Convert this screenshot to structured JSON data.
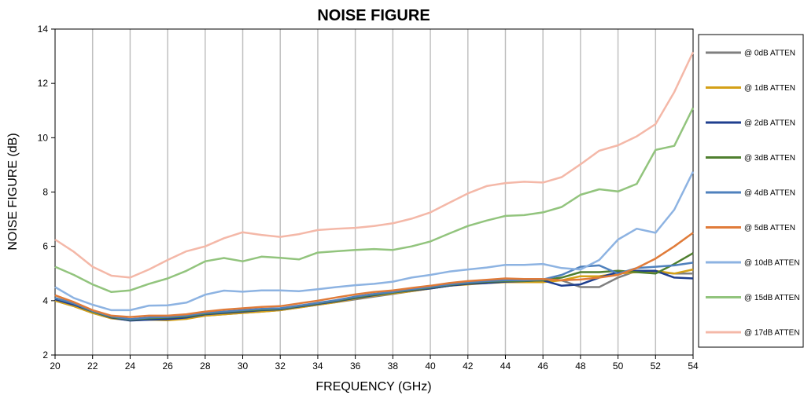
{
  "chart_data": {
    "type": "line",
    "title": "NOISE FIGURE",
    "xlabel": "FREQUENCY (GHz)",
    "ylabel": "NOISE FIGURE (dB)",
    "xlim": [
      20,
      54
    ],
    "ylim": [
      2,
      14
    ],
    "x_ticks": [
      20,
      22,
      24,
      26,
      28,
      30,
      32,
      34,
      36,
      38,
      40,
      42,
      44,
      46,
      48,
      50,
      52,
      54
    ],
    "y_ticks": [
      2,
      4,
      6,
      8,
      10,
      12,
      14
    ],
    "grid": "vertical",
    "legend_position": "right",
    "x": [
      20,
      21,
      22,
      23,
      24,
      25,
      26,
      27,
      28,
      29,
      30,
      31,
      32,
      33,
      34,
      35,
      36,
      37,
      38,
      39,
      40,
      41,
      42,
      43,
      44,
      45,
      46,
      47,
      48,
      49,
      50,
      51,
      52,
      53,
      54
    ],
    "series": [
      {
        "name": "@ 0dB ATTEN",
        "color": "#7f7f7f",
        "values": [
          4.0,
          3.8,
          3.55,
          3.35,
          3.28,
          3.3,
          3.3,
          3.35,
          3.45,
          3.5,
          3.55,
          3.6,
          3.65,
          3.75,
          3.85,
          3.95,
          4.05,
          4.15,
          4.25,
          4.35,
          4.45,
          4.55,
          4.62,
          4.68,
          4.72,
          4.75,
          4.78,
          4.75,
          4.5,
          4.5,
          4.85,
          5.1,
          5.05,
          5.0,
          5.0
        ]
      },
      {
        "name": "@ 1dB ATTEN",
        "color": "#d4a017",
        "values": [
          4.0,
          3.8,
          3.55,
          3.35,
          3.3,
          3.3,
          3.28,
          3.33,
          3.45,
          3.5,
          3.55,
          3.6,
          3.65,
          3.75,
          3.85,
          3.95,
          4.08,
          4.18,
          4.27,
          4.35,
          4.45,
          4.55,
          4.6,
          4.65,
          4.68,
          4.68,
          4.68,
          4.75,
          4.9,
          4.9,
          5.0,
          5.05,
          5.1,
          5.0,
          5.15
        ]
      },
      {
        "name": "@ 2dB ATTEN",
        "color": "#1f3f8f",
        "values": [
          4.05,
          3.85,
          3.6,
          3.38,
          3.27,
          3.3,
          3.32,
          3.38,
          3.5,
          3.55,
          3.6,
          3.65,
          3.68,
          3.78,
          3.88,
          3.98,
          4.1,
          4.2,
          4.3,
          4.38,
          4.45,
          4.55,
          4.62,
          4.65,
          4.7,
          4.72,
          4.75,
          4.55,
          4.6,
          4.85,
          5.05,
          5.1,
          5.1,
          4.85,
          4.82
        ]
      },
      {
        "name": "@ 3dB ATTEN",
        "color": "#4f7f2f",
        "values": [
          4.1,
          3.9,
          3.6,
          3.4,
          3.3,
          3.35,
          3.38,
          3.42,
          3.52,
          3.58,
          3.63,
          3.67,
          3.7,
          3.8,
          3.9,
          4.0,
          4.12,
          4.22,
          4.3,
          4.4,
          4.48,
          4.58,
          4.65,
          4.7,
          4.72,
          4.73,
          4.75,
          4.85,
          5.05,
          5.05,
          5.1,
          5.05,
          5.0,
          5.35,
          5.75
        ]
      },
      {
        "name": "@ 4dB ATTEN",
        "color": "#4f81bd",
        "values": [
          4.1,
          3.9,
          3.62,
          3.42,
          3.32,
          3.38,
          3.4,
          3.45,
          3.55,
          3.6,
          3.65,
          3.7,
          3.72,
          3.82,
          3.92,
          4.02,
          4.15,
          4.25,
          4.32,
          4.42,
          4.5,
          4.6,
          4.67,
          4.72,
          4.75,
          4.75,
          4.78,
          4.95,
          5.25,
          5.3,
          5.0,
          5.2,
          5.25,
          5.3,
          5.4
        ]
      },
      {
        "name": "@ 5dB ATTEN",
        "color": "#e07b39",
        "values": [
          4.2,
          3.95,
          3.65,
          3.45,
          3.4,
          3.45,
          3.45,
          3.5,
          3.6,
          3.67,
          3.72,
          3.77,
          3.8,
          3.9,
          4.0,
          4.12,
          4.23,
          4.32,
          4.38,
          4.47,
          4.55,
          4.65,
          4.72,
          4.77,
          4.82,
          4.8,
          4.8,
          4.75,
          4.78,
          4.85,
          4.95,
          5.2,
          5.55,
          6.0,
          6.5
        ]
      },
      {
        "name": "@ 10dB ATTEN",
        "color": "#8db3e2",
        "values": [
          4.5,
          4.1,
          3.85,
          3.65,
          3.65,
          3.82,
          3.83,
          3.93,
          4.22,
          4.37,
          4.33,
          4.38,
          4.38,
          4.35,
          4.42,
          4.5,
          4.57,
          4.62,
          4.7,
          4.85,
          4.95,
          5.07,
          5.15,
          5.22,
          5.32,
          5.32,
          5.35,
          5.2,
          5.15,
          5.5,
          6.25,
          6.65,
          6.5,
          7.35,
          8.75
        ]
      },
      {
        "name": "@ 15dB ATTEN",
        "color": "#92c47d",
        "values": [
          5.25,
          4.95,
          4.6,
          4.32,
          4.38,
          4.62,
          4.82,
          5.1,
          5.45,
          5.57,
          5.45,
          5.62,
          5.58,
          5.52,
          5.77,
          5.82,
          5.87,
          5.9,
          5.87,
          6.0,
          6.18,
          6.47,
          6.75,
          6.95,
          7.12,
          7.15,
          7.25,
          7.45,
          7.9,
          8.1,
          8.02,
          8.3,
          9.55,
          9.7,
          11.1
        ]
      },
      {
        "name": "@ 17dB ATTEN",
        "color": "#f4b8a8",
        "values": [
          6.25,
          5.8,
          5.25,
          4.92,
          4.85,
          5.15,
          5.5,
          5.82,
          6.0,
          6.3,
          6.52,
          6.42,
          6.35,
          6.45,
          6.6,
          6.65,
          6.68,
          6.75,
          6.85,
          7.02,
          7.25,
          7.6,
          7.95,
          8.22,
          8.33,
          8.38,
          8.35,
          8.55,
          9.02,
          9.52,
          9.72,
          10.05,
          10.5,
          11.68,
          13.15
        ]
      }
    ]
  }
}
